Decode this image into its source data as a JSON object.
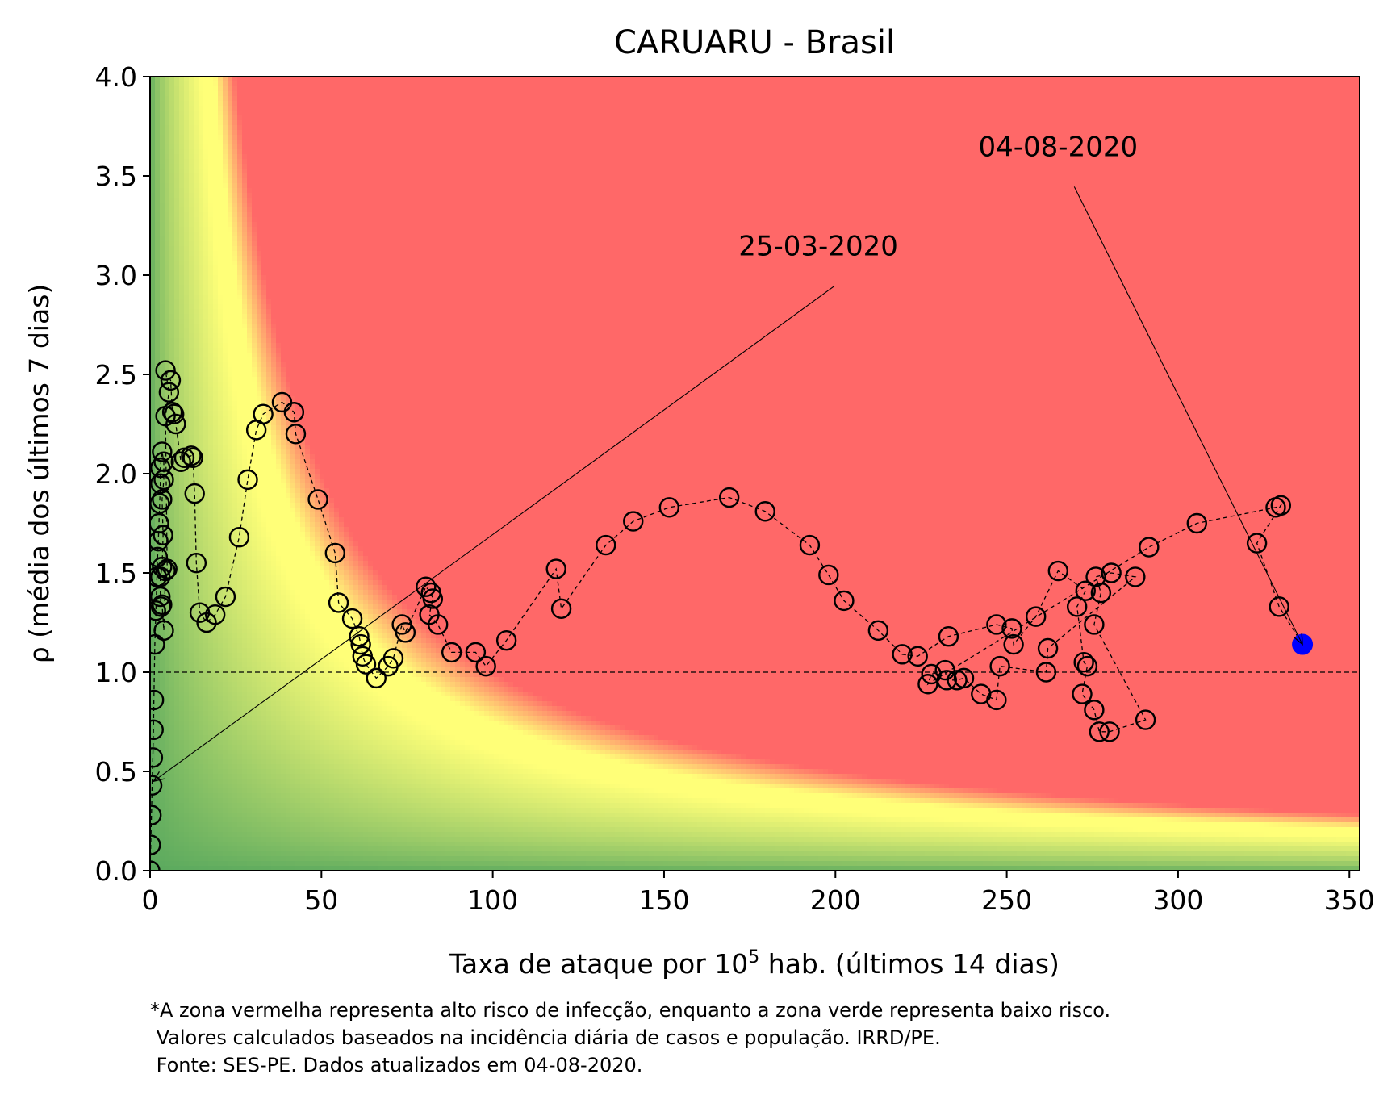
{
  "chart_data": {
    "type": "scatter",
    "title": "CARUARU - Brasil",
    "xlabel_main": "Taxa de ataque por 10",
    "xlabel_sup": "5",
    "xlabel_rest": " hab. (últimos 14 dias)",
    "ylabel": "ρ (média dos últimos 7 dias)",
    "xlim": [
      0,
      353
    ],
    "ylim": [
      0,
      4
    ],
    "xticks": [
      "0",
      "50",
      "100",
      "150",
      "200",
      "250",
      "300",
      "350"
    ],
    "yticks": [
      "0.0",
      "0.5",
      "1.0",
      "1.5",
      "2.0",
      "2.5",
      "3.0",
      "3.5",
      "4.0"
    ],
    "reference_line_y": 1.0,
    "background": "risk-zone gradient: red = high risk, yellow = moderate, green = low risk",
    "colors": {
      "high_risk": "#ff6868",
      "moderate": "#ffff78",
      "low_risk": "#5aa95e",
      "last_point": "#0000ff",
      "markers": "#000000"
    },
    "points": [
      [
        0.0,
        0.0
      ],
      [
        0.2,
        0.13
      ],
      [
        0.4,
        0.28
      ],
      [
        0.6,
        0.43
      ],
      [
        0.8,
        0.57
      ],
      [
        1.0,
        0.71
      ],
      [
        1.1,
        0.86
      ],
      [
        1.4,
        1.14
      ],
      [
        1.7,
        1.31
      ],
      [
        2.0,
        1.48
      ],
      [
        2.2,
        1.58
      ],
      [
        2.4,
        1.66
      ],
      [
        2.6,
        1.75
      ],
      [
        2.8,
        1.85
      ],
      [
        3.0,
        1.95
      ],
      [
        3.0,
        2.03
      ],
      [
        3.5,
        2.11
      ],
      [
        4.0,
        2.06
      ],
      [
        4.0,
        1.97
      ],
      [
        3.5,
        1.87
      ],
      [
        3.8,
        1.69
      ],
      [
        3.5,
        1.53
      ],
      [
        3.0,
        1.48
      ],
      [
        3.0,
        1.38
      ],
      [
        3.2,
        1.33
      ],
      [
        3.5,
        1.34
      ],
      [
        4.0,
        1.21
      ],
      [
        4.5,
        1.51
      ],
      [
        5.0,
        1.52
      ],
      [
        4.5,
        2.29
      ],
      [
        5.5,
        2.41
      ],
      [
        4.5,
        2.52
      ],
      [
        6.0,
        2.47
      ],
      [
        6.5,
        2.31
      ],
      [
        7.0,
        2.3
      ],
      [
        7.5,
        2.25
      ],
      [
        9.0,
        2.06
      ],
      [
        10.0,
        2.08
      ],
      [
        12.0,
        2.09
      ],
      [
        12.5,
        2.08
      ],
      [
        13.0,
        1.9
      ],
      [
        13.5,
        1.55
      ],
      [
        14.5,
        1.3
      ],
      [
        16.5,
        1.25
      ],
      [
        19.0,
        1.29
      ],
      [
        22.0,
        1.38
      ],
      [
        26.0,
        1.68
      ],
      [
        28.5,
        1.97
      ],
      [
        31.0,
        2.22
      ],
      [
        33.0,
        2.3
      ],
      [
        38.5,
        2.36
      ],
      [
        42.0,
        2.31
      ],
      [
        42.5,
        2.2
      ],
      [
        49.0,
        1.87
      ],
      [
        54.0,
        1.6
      ],
      [
        55.0,
        1.35
      ],
      [
        59.0,
        1.27
      ],
      [
        61.0,
        1.18
      ],
      [
        61.5,
        1.14
      ],
      [
        62.0,
        1.08
      ],
      [
        63.0,
        1.04
      ],
      [
        66.0,
        0.97
      ],
      [
        69.5,
        1.03
      ],
      [
        71.0,
        1.07
      ],
      [
        73.5,
        1.24
      ],
      [
        74.5,
        1.2
      ],
      [
        80.5,
        1.43
      ],
      [
        82.0,
        1.4
      ],
      [
        82.5,
        1.37
      ],
      [
        81.5,
        1.29
      ],
      [
        84.0,
        1.24
      ],
      [
        88.0,
        1.1
      ],
      [
        95.0,
        1.1
      ],
      [
        98.0,
        1.03
      ],
      [
        104.0,
        1.16
      ],
      [
        118.5,
        1.52
      ],
      [
        120.0,
        1.32
      ],
      [
        133.0,
        1.64
      ],
      [
        141.0,
        1.76
      ],
      [
        151.5,
        1.83
      ],
      [
        169.0,
        1.88
      ],
      [
        179.5,
        1.81
      ],
      [
        192.5,
        1.64
      ],
      [
        198.0,
        1.49
      ],
      [
        202.5,
        1.36
      ],
      [
        212.5,
        1.21
      ],
      [
        219.5,
        1.09
      ],
      [
        224.0,
        1.08
      ],
      [
        233.0,
        1.18
      ],
      [
        247.0,
        1.24
      ],
      [
        251.5,
        1.22
      ],
      [
        252.0,
        1.14
      ],
      [
        258.5,
        1.28
      ],
      [
        265.0,
        1.51
      ],
      [
        273.0,
        1.41
      ],
      [
        270.5,
        1.33
      ],
      [
        272.5,
        1.05
      ],
      [
        273.5,
        1.03
      ],
      [
        272.0,
        0.89
      ],
      [
        275.5,
        0.81
      ],
      [
        277.0,
        0.7
      ],
      [
        280.0,
        0.7
      ],
      [
        290.5,
        0.76
      ],
      [
        275.5,
        1.24
      ],
      [
        277.5,
        1.4
      ],
      [
        276.0,
        1.48
      ],
      [
        280.5,
        1.5
      ],
      [
        287.5,
        1.48
      ],
      [
        262.0,
        1.12
      ],
      [
        261.5,
        1.0
      ],
      [
        248.0,
        1.03
      ],
      [
        247.0,
        0.86
      ],
      [
        242.5,
        0.89
      ],
      [
        237.5,
        0.97
      ],
      [
        235.5,
        0.96
      ],
      [
        232.5,
        0.96
      ],
      [
        232.0,
        1.01
      ],
      [
        228.0,
        0.99
      ],
      [
        227.0,
        0.94
      ],
      [
        291.5,
        1.63
      ],
      [
        305.5,
        1.75
      ],
      [
        328.5,
        1.83
      ],
      [
        330.0,
        1.84
      ],
      [
        323.0,
        1.65
      ],
      [
        329.5,
        1.33
      ],
      [
        336.3,
        1.14
      ]
    ],
    "annotations": [
      {
        "text": "25-03-2020",
        "xy": [
          1.0,
          0.45
        ],
        "xytext": [
          195,
          3.1
        ]
      },
      {
        "text": "04-08-2020",
        "xy": [
          336.3,
          1.14
        ],
        "xytext": [
          265,
          3.6
        ]
      }
    ]
  },
  "footnote": {
    "line1": "*A zona vermelha representa alto risco de infecção, enquanto a zona verde representa baixo risco.",
    "line2": " Valores calculados baseados na incidência diária de casos e população. IRRD/PE.",
    "line3": " Fonte: SES-PE. Dados atualizados em 04-08-2020."
  }
}
